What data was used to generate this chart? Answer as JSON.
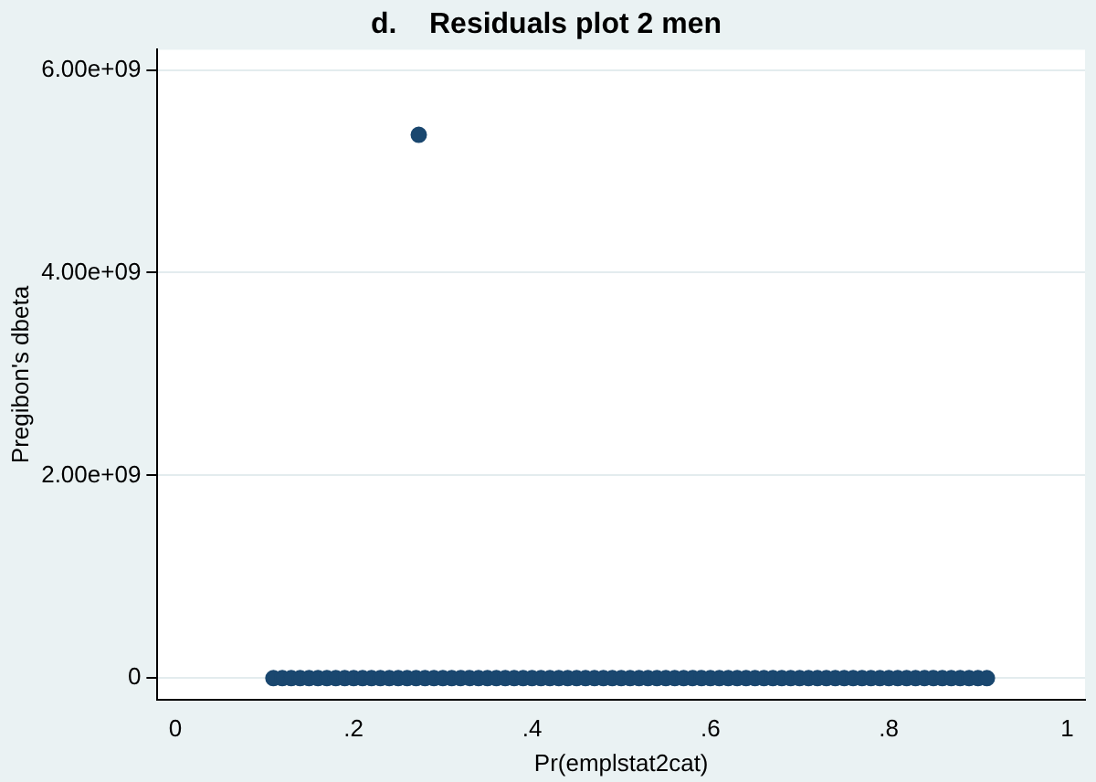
{
  "chart_data": {
    "type": "scatter",
    "title": "d.    Residuals plot 2 men",
    "xlabel": "Pr(emplstat2cat)",
    "ylabel": "Pregibon's dbeta",
    "x": [
      0.11,
      0.12,
      0.13,
      0.14,
      0.15,
      0.16,
      0.17,
      0.18,
      0.19,
      0.2,
      0.21,
      0.22,
      0.23,
      0.24,
      0.25,
      0.26,
      0.27,
      0.28,
      0.29,
      0.3,
      0.31,
      0.32,
      0.33,
      0.34,
      0.35,
      0.36,
      0.37,
      0.38,
      0.39,
      0.4,
      0.41,
      0.42,
      0.43,
      0.44,
      0.45,
      0.46,
      0.47,
      0.48,
      0.49,
      0.5,
      0.51,
      0.52,
      0.53,
      0.54,
      0.55,
      0.56,
      0.57,
      0.58,
      0.59,
      0.6,
      0.61,
      0.62,
      0.63,
      0.64,
      0.65,
      0.66,
      0.67,
      0.68,
      0.69,
      0.7,
      0.71,
      0.72,
      0.73,
      0.74,
      0.75,
      0.76,
      0.77,
      0.78,
      0.79,
      0.8,
      0.81,
      0.82,
      0.83,
      0.84,
      0.85,
      0.86,
      0.87,
      0.88,
      0.89,
      0.9,
      0.91,
      0.273
    ],
    "values": [
      0,
      0,
      0,
      0,
      0,
      0,
      0,
      0,
      0,
      0,
      0,
      0,
      0,
      0,
      0,
      0,
      0,
      0,
      0,
      0,
      0,
      0,
      0,
      0,
      0,
      0,
      0,
      0,
      0,
      0,
      0,
      0,
      0,
      0,
      0,
      0,
      0,
      0,
      0,
      0,
      0,
      0,
      0,
      0,
      0,
      0,
      0,
      0,
      0,
      0,
      0,
      0,
      0,
      0,
      0,
      0,
      0,
      0,
      0,
      0,
      0,
      0,
      0,
      0,
      0,
      0,
      0,
      0,
      0,
      0,
      0,
      0,
      0,
      0,
      0,
      0,
      0,
      0,
      0,
      0,
      0,
      5360000000
    ],
    "color": "#1a476f",
    "marker": "circle",
    "grid": "y",
    "xlim": [
      -0.02,
      1.02
    ],
    "xticks": [
      {
        "value": 0,
        "label": "0"
      },
      {
        "value": 0.2,
        "label": ".2"
      },
      {
        "value": 0.4,
        "label": ".4"
      },
      {
        "value": 0.6,
        "label": ".6"
      },
      {
        "value": 0.8,
        "label": ".8"
      },
      {
        "value": 1,
        "label": "1"
      }
    ],
    "ylim": [
      -210000000,
      6200000000
    ],
    "yticks": [
      {
        "value": 0,
        "label": "0"
      },
      {
        "value": 2000000000,
        "label": "2.00e+09"
      },
      {
        "value": 4000000000,
        "label": "4.00e+09"
      },
      {
        "value": 6000000000,
        "label": "6.00e+09"
      }
    ]
  }
}
